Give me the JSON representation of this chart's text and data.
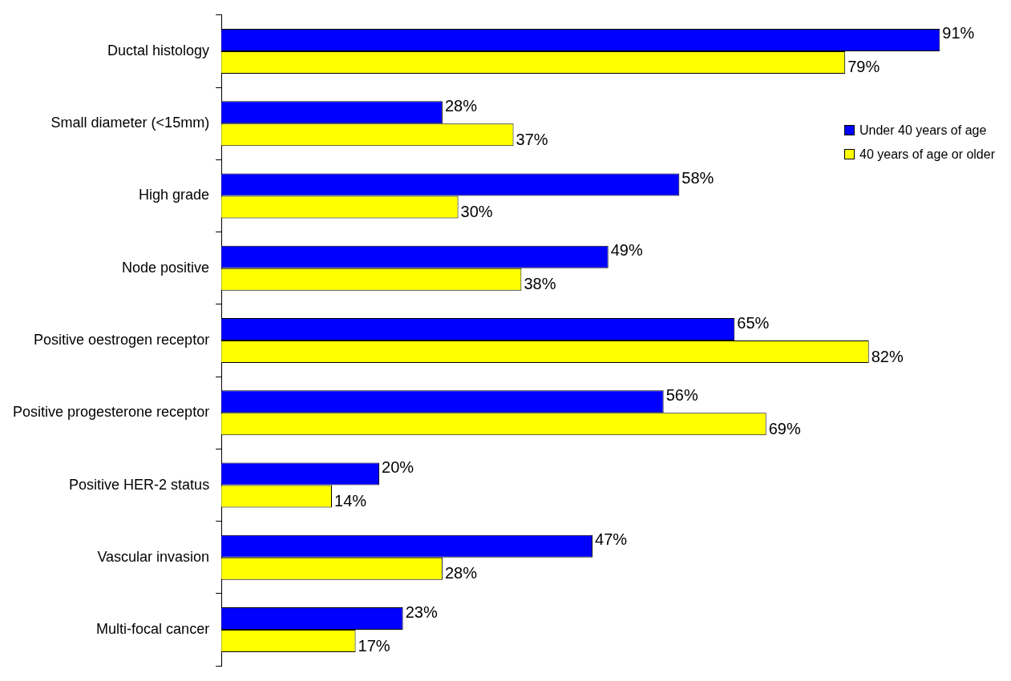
{
  "chart_data": {
    "type": "bar",
    "orientation": "horizontal",
    "categories": [
      "Ductal histology",
      "Small diameter (<15mm)",
      "High grade",
      "Node positive",
      "Positive oestrogen receptor",
      "Positive progesterone receptor",
      "Positive HER-2 status",
      "Vascular invasion",
      "Multi-focal cancer"
    ],
    "series": [
      {
        "name": "Under 40 years of age",
        "color": "#0000ff",
        "values": [
          91,
          28,
          58,
          49,
          65,
          56,
          20,
          47,
          23
        ],
        "value_labels": [
          "91%",
          "28%",
          "58%",
          "49%",
          "65%",
          "56%",
          "20%",
          "47%",
          "23%"
        ]
      },
      {
        "name": "40 years of age or older",
        "color": "#ffff00",
        "values": [
          79,
          37,
          30,
          38,
          82,
          69,
          14,
          28,
          17
        ],
        "value_labels": [
          "79%",
          "37%",
          "30%",
          "38%",
          "82%",
          "69%",
          "14%",
          "28%",
          "17%"
        ]
      }
    ],
    "tick_labels": "y",
    "grid": false,
    "legend": "top right"
  }
}
